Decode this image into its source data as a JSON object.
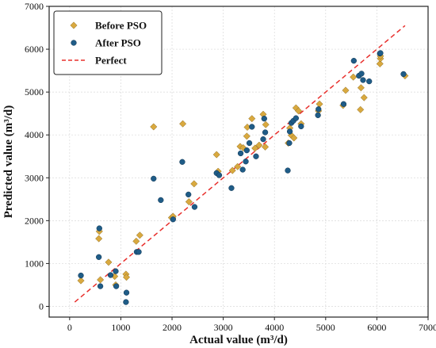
{
  "chart_data": {
    "type": "scatter",
    "xlabel": "Actual value (m³/d)",
    "ylabel": "Predicted value (m³/d)",
    "xlim": [
      -400,
      7000
    ],
    "ylim": [
      -250,
      7000
    ],
    "xticks": [
      0,
      1000,
      2000,
      3000,
      4000,
      5000,
      6000,
      7000
    ],
    "yticks": [
      0,
      1000,
      2000,
      3000,
      4000,
      5000,
      6000,
      7000
    ],
    "grid": true,
    "legend_position": "top-left",
    "series": [
      {
        "name": "Before PSO",
        "marker": "diamond",
        "color": "#D9A93F",
        "points": [
          [
            220,
            600
          ],
          [
            570,
            1580
          ],
          [
            580,
            1750
          ],
          [
            600,
            620
          ],
          [
            760,
            1030
          ],
          [
            880,
            700
          ],
          [
            900,
            500
          ],
          [
            1100,
            750
          ],
          [
            1110,
            680
          ],
          [
            1300,
            1520
          ],
          [
            1370,
            1660
          ],
          [
            1640,
            4190
          ],
          [
            1990,
            2070
          ],
          [
            2020,
            2100
          ],
          [
            2210,
            4260
          ],
          [
            2330,
            2440
          ],
          [
            2430,
            2860
          ],
          [
            2870,
            3540
          ],
          [
            2900,
            3150
          ],
          [
            3180,
            3170
          ],
          [
            3280,
            3260
          ],
          [
            3330,
            3730
          ],
          [
            3390,
            3700
          ],
          [
            3460,
            3970
          ],
          [
            3470,
            4180
          ],
          [
            3560,
            4380
          ],
          [
            3620,
            3690
          ],
          [
            3700,
            3760
          ],
          [
            3780,
            4480
          ],
          [
            3820,
            3720
          ],
          [
            3830,
            4240
          ],
          [
            4270,
            3810
          ],
          [
            4300,
            4160
          ],
          [
            4330,
            3990
          ],
          [
            4380,
            3930
          ],
          [
            4420,
            4630
          ],
          [
            4470,
            4560
          ],
          [
            4520,
            4260
          ],
          [
            4860,
            4560
          ],
          [
            4880,
            4720
          ],
          [
            5340,
            4690
          ],
          [
            5390,
            5040
          ],
          [
            5540,
            5350
          ],
          [
            5680,
            4590
          ],
          [
            5690,
            5100
          ],
          [
            5750,
            4870
          ],
          [
            6060,
            5660
          ],
          [
            6070,
            5780
          ],
          [
            6070,
            5840
          ],
          [
            6550,
            5380
          ]
        ]
      },
      {
        "name": "After PSO",
        "marker": "circle",
        "color": "#1F5C87",
        "points": [
          [
            220,
            720
          ],
          [
            570,
            1150
          ],
          [
            580,
            1820
          ],
          [
            600,
            470
          ],
          [
            800,
            730
          ],
          [
            900,
            820
          ],
          [
            910,
            470
          ],
          [
            1100,
            100
          ],
          [
            1110,
            320
          ],
          [
            1310,
            1270
          ],
          [
            1350,
            1270
          ],
          [
            1640,
            2980
          ],
          [
            1780,
            2480
          ],
          [
            2020,
            2030
          ],
          [
            2200,
            3370
          ],
          [
            2320,
            2610
          ],
          [
            2440,
            2320
          ],
          [
            2870,
            3110
          ],
          [
            2920,
            3060
          ],
          [
            3160,
            2760
          ],
          [
            3340,
            3570
          ],
          [
            3380,
            3190
          ],
          [
            3440,
            3380
          ],
          [
            3460,
            3640
          ],
          [
            3510,
            3810
          ],
          [
            3560,
            4190
          ],
          [
            3640,
            3500
          ],
          [
            3780,
            3900
          ],
          [
            3800,
            4380
          ],
          [
            3820,
            4060
          ],
          [
            4260,
            3170
          ],
          [
            4290,
            3810
          ],
          [
            4300,
            4080
          ],
          [
            4330,
            4280
          ],
          [
            4370,
            4330
          ],
          [
            4420,
            4390
          ],
          [
            4520,
            4200
          ],
          [
            4850,
            4460
          ],
          [
            4860,
            4600
          ],
          [
            5350,
            4720
          ],
          [
            5550,
            5730
          ],
          [
            5650,
            5380
          ],
          [
            5700,
            5430
          ],
          [
            5730,
            5280
          ],
          [
            5850,
            5250
          ],
          [
            6060,
            5900
          ],
          [
            6070,
            5910
          ],
          [
            6520,
            5420
          ]
        ]
      },
      {
        "name": "Perfect",
        "type": "line",
        "style": "dashed",
        "color": "#E8302D",
        "x": [
          100,
          6550
        ],
        "y": [
          100,
          6550
        ]
      }
    ]
  }
}
